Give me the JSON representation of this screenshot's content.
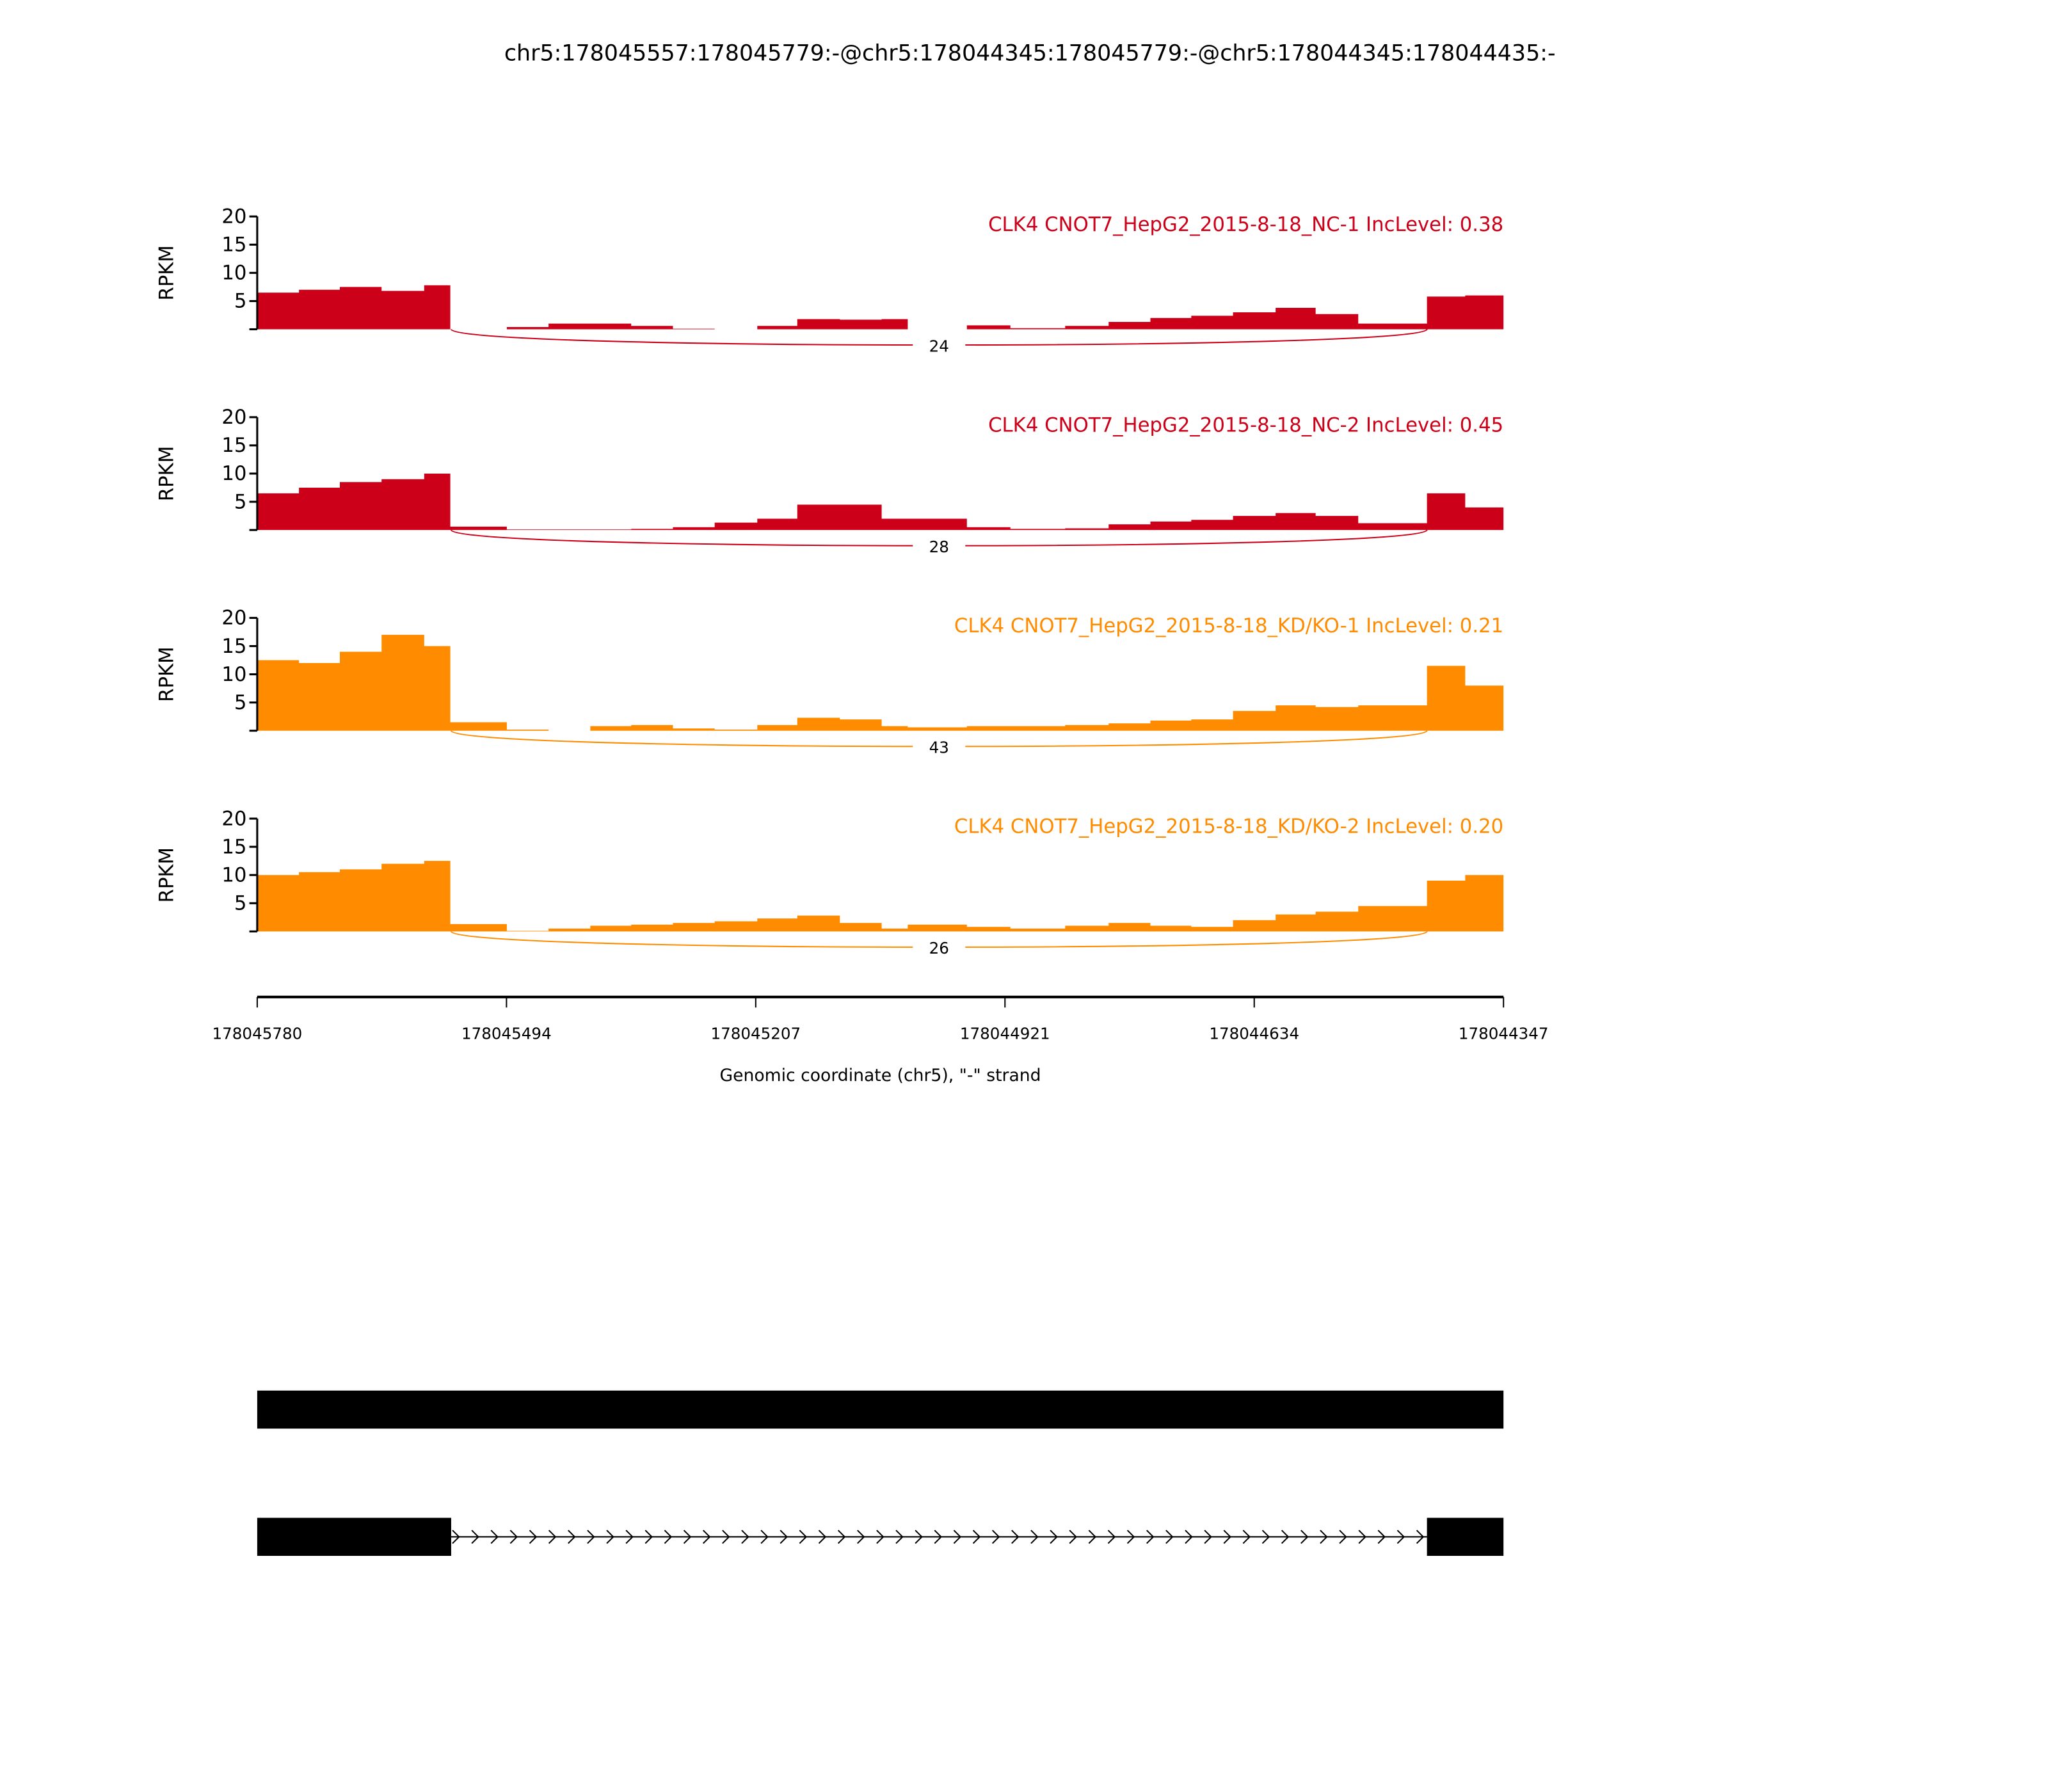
{
  "chart_data": {
    "type": "area",
    "title": "chr5:178045557:178045779:-@chr5:178044345:178045779:-@chr5:178044345:178044435:-",
    "xlabel": "Genomic coordinate (chr5), \"-\" strand",
    "ylabel": "RPKM",
    "xlim": [
      178045780,
      178044347
    ],
    "ylim": [
      0,
      20
    ],
    "x_ticks": [
      "178045780",
      "178045494",
      "178045207",
      "178044921",
      "178044634",
      "178044347"
    ],
    "y_ticks": [
      "5",
      "10",
      "15",
      "20"
    ],
    "bin_edges": [
      178045780,
      178045732,
      178045685,
      178045637,
      178045588,
      178045558,
      178045493,
      178045445,
      178045397,
      178045350,
      178045302,
      178045254,
      178045205,
      178045159,
      178045110,
      178045062,
      178045032,
      178044964,
      178044914,
      178044851,
      178044801,
      178044753,
      178044706,
      178044658,
      178044609,
      178044563,
      178044514,
      178044435,
      178044391,
      178044347
    ],
    "junction": {
      "start": 178045557,
      "end": 178044435
    },
    "series": [
      {
        "name": "CLK4 CNOT7_HepG2_2015-8-18_NC-1 IncLevel: 0.38",
        "color": "#cc0018",
        "junction_count": "24",
        "values": [
          6.5,
          7,
          7.5,
          6.8,
          7.8,
          0,
          0.4,
          1,
          1,
          0.6,
          0.1,
          0,
          0.6,
          1.8,
          1.7,
          1.8,
          0,
          0.7,
          0.2,
          0.6,
          1.3,
          2,
          2.4,
          3,
          3.8,
          2.7,
          1,
          5.8,
          6
        ]
      },
      {
        "name": "CLK4 CNOT7_HepG2_2015-8-18_NC-2 IncLevel: 0.45",
        "color": "#cc0018",
        "junction_count": "28",
        "values": [
          6.5,
          7.5,
          8.5,
          9,
          10,
          0.6,
          0.1,
          0.1,
          0.1,
          0.2,
          0.5,
          1.3,
          2,
          4.5,
          4.5,
          2,
          2,
          0.5,
          0.2,
          0.3,
          1,
          1.5,
          1.8,
          2.5,
          3,
          2.5,
          1.2,
          6.5,
          4
        ]
      },
      {
        "name": "CLK4 CNOT7_HepG2_2015-8-18_KD/KO-1 IncLevel: 0.21",
        "color": "#ff8c00",
        "junction_count": "43",
        "values": [
          12.5,
          12,
          14,
          17,
          15,
          1.5,
          0.2,
          0,
          0.8,
          1,
          0.4,
          0.2,
          1,
          2.3,
          2,
          0.8,
          0.6,
          0.8,
          0.8,
          1,
          1.3,
          1.8,
          2,
          3.5,
          4.5,
          4.2,
          4.5,
          11.5,
          8
        ]
      },
      {
        "name": "CLK4 CNOT7_HepG2_2015-8-18_KD/KO-2 IncLevel: 0.20",
        "color": "#ff8c00",
        "junction_count": "26",
        "values": [
          10,
          10.5,
          11,
          12,
          12.5,
          1.3,
          0.1,
          0.5,
          1,
          1.2,
          1.5,
          1.8,
          2.3,
          2.8,
          1.5,
          0.5,
          1.2,
          0.8,
          0.5,
          1,
          1.5,
          1,
          0.8,
          2,
          3,
          3.5,
          4.5,
          9,
          10
        ]
      }
    ],
    "gene_models": [
      {
        "exons": [
          [
            178045780,
            178044347
          ]
        ]
      },
      {
        "exons": [
          [
            178045780,
            178045557
          ],
          [
            178044435,
            178044347
          ]
        ]
      }
    ]
  }
}
